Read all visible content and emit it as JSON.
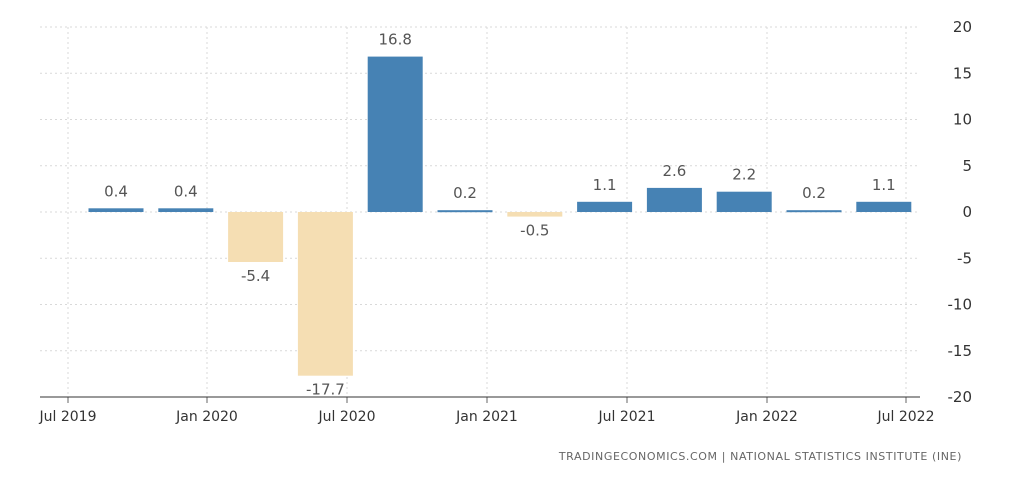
{
  "chart_data": {
    "type": "bar",
    "categories": [
      "Q3 2019",
      "Q4 2019",
      "Q1 2020",
      "Q2 2020",
      "Q3 2020",
      "Q4 2020",
      "Q1 2021",
      "Q2 2021",
      "Q3 2021",
      "Q4 2021",
      "Q1 2022",
      "Q2 2022"
    ],
    "values": [
      0.4,
      0.4,
      -5.4,
      -17.7,
      16.8,
      0.2,
      -0.5,
      1.1,
      2.6,
      2.2,
      0.2,
      1.1
    ],
    "value_labels": [
      "0.4",
      "0.4",
      "-5.4",
      "-17.7",
      "16.8",
      "0.2",
      "-0.5",
      "1.1",
      "2.6",
      "2.2",
      "0.2",
      "1.1"
    ],
    "x_tick_labels": [
      "Jul 2019",
      "Jan 2020",
      "Jul 2020",
      "Jan 2021",
      "Jul 2021",
      "Jan 2022",
      "Jul 2022"
    ],
    "y_ticks": [
      20,
      15,
      10,
      5,
      0,
      -5,
      -10,
      -15,
      -20
    ],
    "ylim": [
      -20,
      20
    ],
    "grid": true,
    "y_axis_position": "right",
    "colors": {
      "positive": "#4682b4",
      "negative": "#f5deb3",
      "grid": "#d9d9d9"
    },
    "title": "",
    "xlabel": "",
    "ylabel": ""
  },
  "source": "TRADINGECONOMICS.COM  |  NATIONAL STATISTICS INSTITUTE (INE)"
}
